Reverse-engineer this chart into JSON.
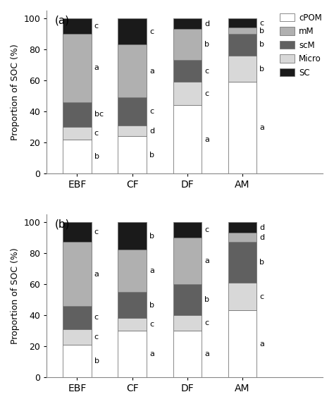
{
  "categories": [
    "EBF",
    "CF",
    "DF",
    "AM"
  ],
  "layers_order": [
    "cPOM",
    "Micro",
    "scM",
    "mM",
    "SC"
  ],
  "colors": {
    "cPOM": "#ffffff",
    "Micro": "#d8d8d8",
    "scM": "#606060",
    "mM": "#b0b0b0",
    "SC": "#1a1a1a"
  },
  "panel_a": {
    "EBF": {
      "cPOM": 22,
      "Micro": 8,
      "scM": 16,
      "mM": 44,
      "SC": 10
    },
    "CF": {
      "cPOM": 24,
      "Micro": 7,
      "scM": 18,
      "mM": 34,
      "SC": 17
    },
    "DF": {
      "cPOM": 44,
      "Micro": 15,
      "scM": 14,
      "mM": 20,
      "SC": 7
    },
    "AM": {
      "cPOM": 59,
      "Micro": 17,
      "scM": 14,
      "mM": 4,
      "SC": 6
    }
  },
  "panel_b": {
    "EBF": {
      "cPOM": 21,
      "Micro": 10,
      "scM": 15,
      "mM": 41,
      "SC": 13
    },
    "CF": {
      "cPOM": 30,
      "Micro": 8,
      "scM": 17,
      "mM": 27,
      "SC": 18
    },
    "DF": {
      "cPOM": 30,
      "Micro": 10,
      "scM": 20,
      "mM": 30,
      "SC": 10
    },
    "AM": {
      "cPOM": 43,
      "Micro": 18,
      "scM": 26,
      "mM": 6,
      "SC": 7
    }
  },
  "labels_a": {
    "EBF": {
      "cPOM": "b",
      "Micro": "c",
      "scM": "bc",
      "mM": "a",
      "SC": "c"
    },
    "CF": {
      "cPOM": "b",
      "Micro": "d",
      "scM": "c",
      "mM": "a",
      "SC": "c"
    },
    "DF": {
      "cPOM": "a",
      "Micro": "c",
      "scM": "c",
      "mM": "b",
      "SC": "d"
    },
    "AM": {
      "cPOM": "a",
      "Micro": "b",
      "scM": "b",
      "mM": "b",
      "SC": "c"
    }
  },
  "labels_b": {
    "EBF": {
      "cPOM": "b",
      "Micro": "c",
      "scM": "c",
      "mM": "a",
      "SC": "c"
    },
    "CF": {
      "cPOM": "a",
      "Micro": "c",
      "scM": "b",
      "mM": "a",
      "SC": "b"
    },
    "DF": {
      "cPOM": "a",
      "Micro": "c",
      "scM": "b",
      "mM": "a",
      "SC": "c"
    },
    "AM": {
      "cPOM": "a",
      "Micro": "c",
      "scM": "b",
      "mM": "d",
      "SC": "d"
    }
  },
  "ylabel": "Proportion of SOC (%)",
  "legend_order": [
    "cPOM",
    "mM",
    "scM",
    "Micro",
    "SC"
  ],
  "figsize": [
    4.74,
    5.73
  ],
  "dpi": 100
}
